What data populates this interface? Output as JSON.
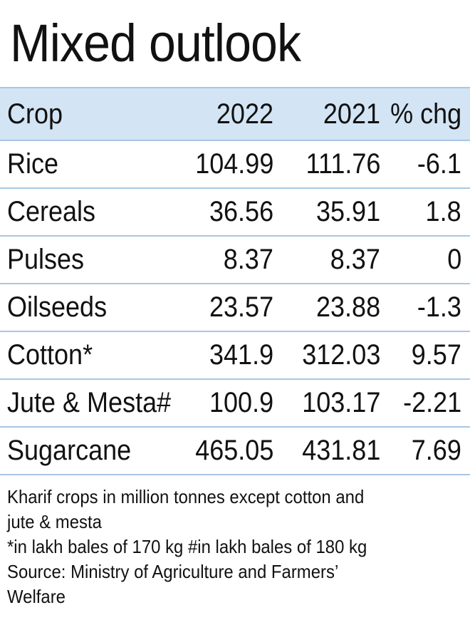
{
  "chart_data": {
    "type": "table",
    "title": "Mixed outlook",
    "columns": [
      "Crop",
      "2022",
      "2021",
      "% chg"
    ],
    "rows": [
      [
        "Rice",
        "104.99",
        "111.76",
        "-6.1"
      ],
      [
        "Cereals",
        "36.56",
        "35.91",
        "1.8"
      ],
      [
        "Pulses",
        "8.37",
        "8.37",
        "0"
      ],
      [
        "Oilseeds",
        "23.57",
        "23.88",
        "-1.3"
      ],
      [
        "Cotton*",
        "341.9",
        "312.03",
        "9.57"
      ],
      [
        "Jute & Mesta#",
        "100.9",
        "103.17",
        "-2.21"
      ],
      [
        "Sugarcane",
        "465.05",
        "431.81",
        "7.69"
      ]
    ],
    "notes": [
      "Kharif crops in million tonnes except cotton and",
      "jute & mesta",
      "*in lakh bales of 170 kg #in lakh bales of 180 kg",
      "Source: Ministry of Agriculture and Farmers’",
      "Welfare"
    ],
    "colors": {
      "header_bg": "#d3e4f4",
      "rule": "#a9c6e3",
      "text": "#111111"
    }
  }
}
